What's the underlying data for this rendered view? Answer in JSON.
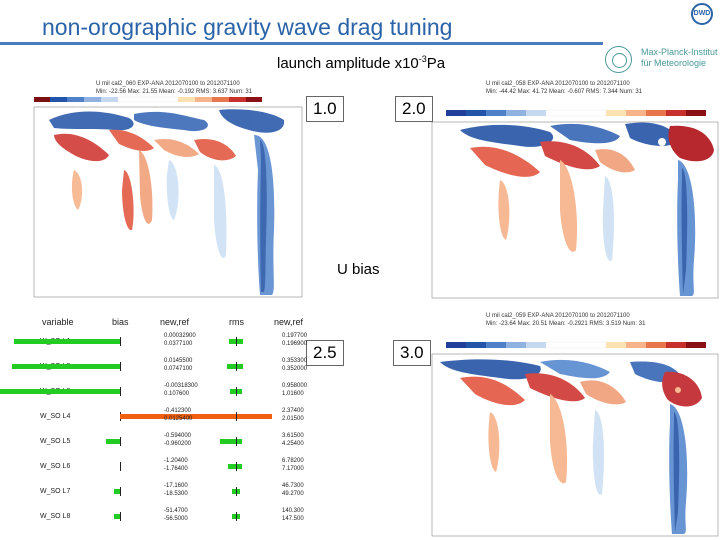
{
  "title": "non-orographic gravity wave drag tuning",
  "logo_dwd": "DWD",
  "logo_mpi": "Max-Planck-Institut für Meteorologie",
  "subtitle_prefix": "launch amplitude x10",
  "subtitle_exp": "-3",
  "subtitle_suffix": "Pa",
  "u_bias_label": "U bias",
  "values": [
    "1.0",
    "2.0",
    "2.5",
    "3.0"
  ],
  "panels": [
    {
      "header1": "U mil   cal2_060   EXP-ANA   2012070100 to 2012071100",
      "header2": "Min: -22.56  Max: 21.55  Mean: -0.192  RMS: 3.637  Num: 31"
    },
    {
      "header1": "U mil   cal2_058   EXP-ANA   2012070100 to 2012071100",
      "header2": "Min: -44.42  Max: 41.72  Mean: -0.607  RMS: 7.344  Num: 31"
    },
    {
      "header1": "U mil   cal2_059   EXP-ANA   2012070100 to 2012071100",
      "header2": "Min: -23.64  Max: 20.51  Mean: -0.2921  RMS: 3.519  Num: 31"
    }
  ],
  "colors": {
    "blue": "#2255aa",
    "red": "#c0282e",
    "green": "#22cc22",
    "orange": "#f06010"
  },
  "bar_headers": {
    "variable": "variable",
    "bias": "bias",
    "newref1": "new,ref",
    "rms": "rms",
    "newref2": "new,ref"
  },
  "bar_rows": [
    {
      "name": "W_SO L1",
      "b_new": "0.00032900",
      "b_ref": "0.0377100",
      "r_new": "0.197700",
      "r_ref": "0.196900"
    },
    {
      "name": "W_SO L2",
      "b_new": "0.0145500",
      "b_ref": "0.0747100",
      "r_new": "0.353300",
      "r_ref": "0.352000"
    },
    {
      "name": "W_SO L3",
      "b_new": "-0.00318300",
      "b_ref": "0.107600",
      "r_new": "0.958000",
      "r_ref": "1.01600"
    },
    {
      "name": "W_SO L4",
      "b_new": "-0.412300",
      "b_ref": "0.0125400",
      "r_new": "2.37400",
      "r_ref": "2.01500"
    },
    {
      "name": "W_SO L5",
      "b_new": "-0.594000",
      "b_ref": "-0.960200",
      "r_new": "3.61500",
      "r_ref": "4.25400"
    },
    {
      "name": "W_SO L6",
      "b_new": "-1.20400",
      "b_ref": "-1.76400",
      "r_new": "6.78200",
      "r_ref": "7.17000"
    },
    {
      "name": "W_SO L7",
      "b_new": "-17.1600",
      "b_ref": "-18.5300",
      "r_new": "46.7300",
      "r_ref": "49.2700"
    },
    {
      "name": "W_SO L8",
      "b_new": "-51.4700",
      "b_ref": "-56.5000",
      "r_new": "140.300",
      "r_ref": "147.500"
    }
  ]
}
